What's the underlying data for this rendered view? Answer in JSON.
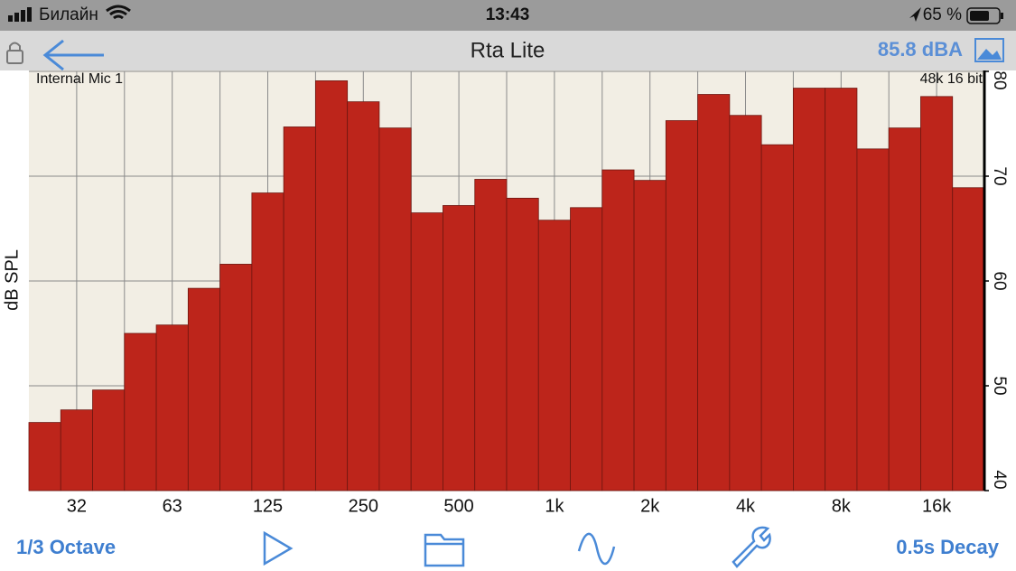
{
  "status_bar": {
    "carrier": "Билайн",
    "time": "13:43",
    "battery": "65 %"
  },
  "nav_bar": {
    "title": "Rta Lite",
    "level": "85.8 dBA"
  },
  "chart_data": {
    "type": "bar",
    "y_label": "dB SPL",
    "annotations": [
      "Internal Mic 1",
      "48k 16 bit"
    ],
    "categories": [
      null,
      "32",
      null,
      null,
      "63",
      null,
      null,
      "125",
      null,
      null,
      "250",
      null,
      null,
      "500",
      null,
      null,
      "1k",
      null,
      null,
      "2k",
      null,
      null,
      "4k",
      null,
      null,
      "8k",
      null,
      null,
      "16k",
      null
    ],
    "values": [
      46.5,
      47.7,
      49.6,
      55.0,
      55.8,
      59.3,
      61.6,
      68.4,
      74.7,
      79.1,
      77.1,
      74.6,
      66.5,
      67.2,
      69.7,
      67.9,
      65.8,
      67.0,
      70.6,
      69.6,
      75.3,
      77.8,
      75.8,
      73.0,
      78.4,
      78.4,
      72.6,
      74.6,
      77.6,
      68.9
    ],
    "color": "#bd251b",
    "ylim": [
      40,
      80
    ],
    "yticks": [
      40,
      50,
      60,
      70,
      80
    ],
    "grid": true
  },
  "toolbar": {
    "resolution": "1/3 Octave",
    "decay": "0.5s Decay"
  }
}
